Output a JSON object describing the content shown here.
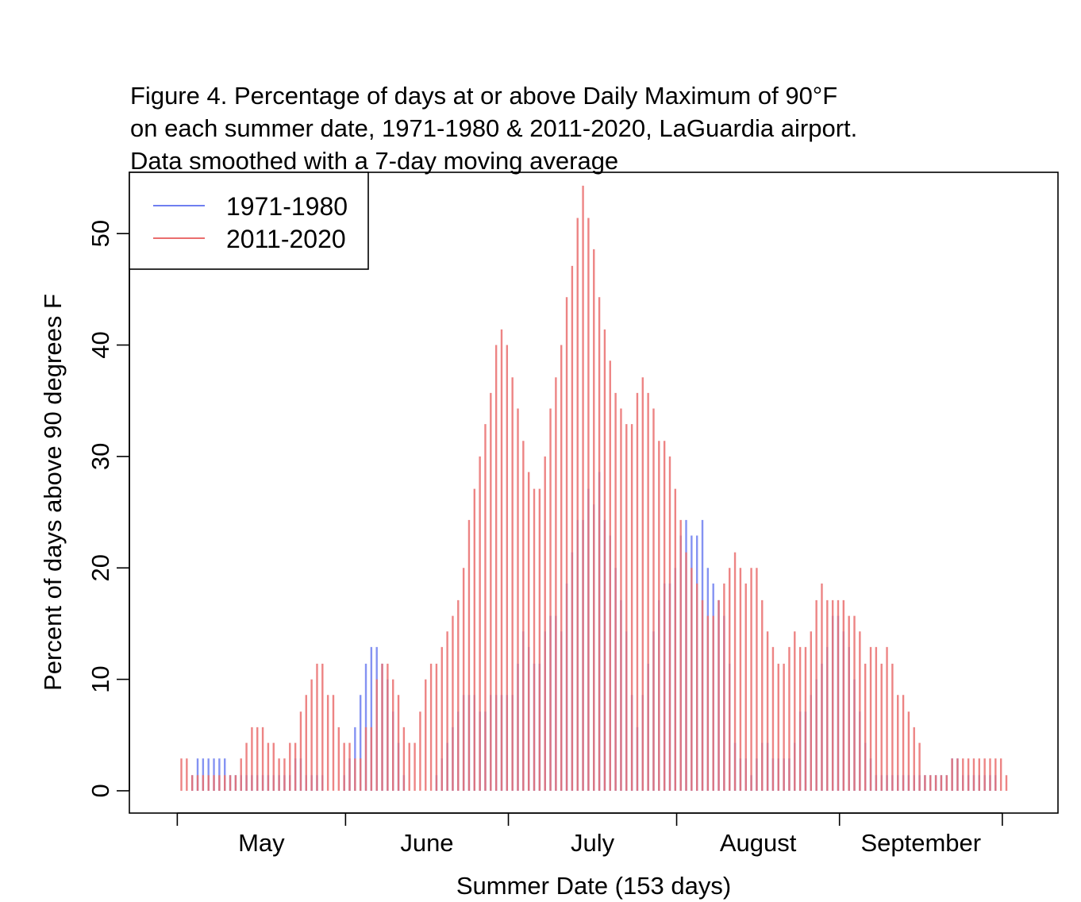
{
  "chart_data": {
    "type": "bar",
    "title_lines": [
      "Figure 4. Percentage of days at or above Daily Maximum of 90°F",
      "on each summer date, 1971-1980 & 2011-2020, LaGuardia airport.",
      "Data smoothed with a 7-day moving average"
    ],
    "xlabel": "Summer Date (153 days)",
    "ylabel": "Percent of days above 90 degrees F",
    "ylim": [
      -2,
      55.5
    ],
    "yticks": [
      0,
      10,
      20,
      30,
      40,
      50
    ],
    "ytick_labels": [
      "0",
      "10",
      "20",
      "30",
      "40",
      "50"
    ],
    "month_labels": [
      "May",
      "June",
      "July",
      "August",
      "September"
    ],
    "month_day_index": [
      1,
      32,
      62,
      93,
      123,
      153
    ],
    "grid": false,
    "legend_position": "top-left",
    "series": [
      {
        "name": "1971-1980",
        "color": "#6f7ff0",
        "values": [
          0,
          0,
          1.4,
          2.9,
          2.9,
          2.9,
          2.9,
          2.9,
          2.9,
          1.4,
          1.4,
          1.4,
          1.4,
          1.4,
          1.4,
          1.4,
          1.4,
          1.4,
          1.4,
          1.4,
          1.4,
          2.9,
          2.9,
          1.4,
          1.4,
          1.4,
          1.4,
          0,
          0,
          0,
          1.4,
          2.9,
          5.7,
          8.6,
          11.4,
          12.9,
          12.9,
          11.4,
          10,
          7.1,
          4.3,
          1.4,
          0,
          0,
          0,
          0,
          0,
          1.4,
          2.9,
          4.3,
          5.7,
          7.1,
          8.6,
          8.6,
          8.6,
          7.1,
          7.1,
          8.6,
          8.6,
          8.6,
          8.6,
          8.6,
          11.4,
          14.3,
          12.9,
          11.4,
          11.4,
          14.3,
          15.7,
          15.7,
          14.3,
          18.6,
          21.4,
          24.3,
          24.3,
          27.1,
          25.7,
          28.6,
          24.3,
          22.9,
          20,
          17.1,
          14.3,
          8.6,
          5.7,
          8.6,
          11.4,
          14.3,
          17.1,
          18.6,
          18.6,
          20,
          22.9,
          24.3,
          22.9,
          22.9,
          24.3,
          20,
          18.6,
          17.1,
          15.7,
          11.4,
          4.3,
          2.9,
          2.9,
          1.4,
          2.9,
          4.3,
          4.3,
          2.9,
          2.9,
          2.9,
          2.9,
          4.3,
          7.1,
          7.1,
          8.6,
          10,
          11.4,
          12.9,
          15.7,
          15.7,
          14.3,
          12.9,
          10,
          7.1,
          4.3,
          2.9,
          1.4,
          1.4,
          1.4,
          1.4,
          1.4,
          1.4,
          1.4,
          1.4,
          1.4,
          1.4,
          1.4,
          1.4,
          1.4,
          1.4,
          2.9,
          2.9,
          1.4,
          1.4,
          1.4,
          1.4,
          1.4,
          1.4,
          1.4,
          0,
          0
        ]
      },
      {
        "name": "2011-2020",
        "color": "#ea6e6e",
        "values": [
          2.9,
          2.9,
          1.4,
          1.4,
          1.4,
          1.4,
          1.4,
          1.4,
          1.4,
          1.4,
          1.4,
          2.9,
          4.3,
          5.7,
          5.7,
          5.7,
          4.3,
          4.3,
          2.9,
          2.9,
          4.3,
          4.3,
          7.1,
          8.6,
          10,
          11.4,
          11.4,
          8.6,
          8.6,
          5.7,
          4.3,
          4.3,
          2.9,
          2.9,
          5.7,
          5.7,
          10,
          11.4,
          11.4,
          10,
          8.6,
          5.7,
          4.3,
          4.3,
          7.1,
          10,
          11.4,
          11.4,
          12.9,
          14.3,
          15.7,
          17.1,
          20,
          24.3,
          27.1,
          30,
          32.9,
          35.7,
          40,
          41.4,
          40,
          37.1,
          34.3,
          31.4,
          28.6,
          27.1,
          27.1,
          30,
          34.3,
          37.1,
          40,
          44.3,
          47.1,
          51.4,
          54.3,
          51.4,
          48.6,
          44.3,
          41.4,
          38.6,
          35.7,
          34.3,
          32.9,
          32.9,
          35.7,
          37.1,
          35.7,
          34.3,
          31.4,
          31.4,
          30,
          27.1,
          24.3,
          21.4,
          20,
          18.6,
          17.1,
          15.7,
          15.7,
          17.1,
          18.6,
          20,
          21.4,
          20,
          18.6,
          20,
          20,
          17.1,
          14.3,
          12.9,
          11.4,
          11.4,
          12.9,
          14.3,
          12.9,
          12.9,
          14.3,
          17.1,
          18.6,
          17.1,
          17.1,
          17.1,
          17.1,
          15.7,
          15.7,
          14.3,
          11.4,
          12.9,
          12.9,
          11.4,
          12.9,
          11.4,
          8.6,
          8.6,
          7.1,
          5.7,
          4.3,
          1.4,
          1.4,
          1.4,
          1.4,
          1.4,
          2.9,
          2.9,
          2.9,
          2.9,
          2.9,
          2.9,
          2.9,
          2.9,
          2.9,
          2.9,
          1.4
        ]
      }
    ]
  }
}
